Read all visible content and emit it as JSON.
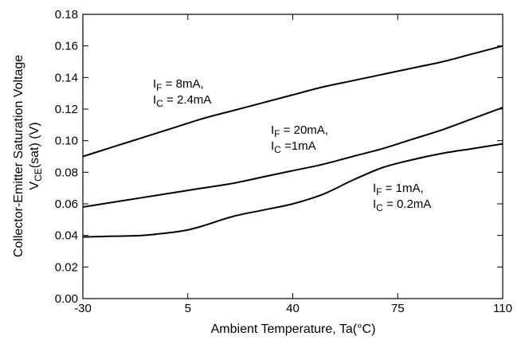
{
  "chart_data": {
    "type": "line",
    "title": "",
    "xlabel": "Ambient Temperature, Ta(°C)",
    "ylabel": {
      "line1": "Collector-Emitter Saturation Voltage",
      "line2_prefix": "V",
      "line2_sub": "CE",
      "line2_suffix": "(sat) (V)"
    },
    "x_ticks": [
      "-30",
      "5",
      "40",
      "75",
      "110"
    ],
    "y_ticks": [
      "0.00",
      "0.02",
      "0.04",
      "0.06",
      "0.08",
      "0.10",
      "0.12",
      "0.14",
      "0.16",
      "0.18"
    ],
    "xlim": [
      -30,
      110
    ],
    "ylim": [
      0,
      0.18
    ],
    "grid": false,
    "line_color": "#000000",
    "series": [
      {
        "label_lines": [
          {
            "prefix": "I",
            "sub": "F",
            "text": " = 8mA,"
          },
          {
            "prefix": "I",
            "sub": "C",
            "text": " = 2.4mA"
          }
        ],
        "x": [
          -30,
          -20,
          -10,
          0,
          10,
          20,
          30,
          40,
          50,
          60,
          70,
          80,
          90,
          100,
          110
        ],
        "y": [
          0.09,
          0.096,
          0.102,
          0.108,
          0.114,
          0.119,
          0.124,
          0.129,
          0.134,
          0.138,
          0.142,
          0.146,
          0.15,
          0.155,
          0.16
        ]
      },
      {
        "label_lines": [
          {
            "prefix": "I",
            "sub": "F",
            "text": " = 20mA,"
          },
          {
            "prefix": "I",
            "sub": "C",
            "text": " =1mA"
          }
        ],
        "x": [
          -30,
          -20,
          -10,
          0,
          10,
          20,
          30,
          40,
          50,
          60,
          70,
          80,
          90,
          100,
          110
        ],
        "y": [
          0.058,
          0.061,
          0.064,
          0.067,
          0.07,
          0.073,
          0.077,
          0.081,
          0.085,
          0.09,
          0.095,
          0.101,
          0.107,
          0.114,
          0.121
        ]
      },
      {
        "label_lines": [
          {
            "prefix": "I",
            "sub": "F",
            "text": " = 1mA,"
          },
          {
            "prefix": "I",
            "sub": "C",
            "text": " = 0.2mA"
          }
        ],
        "x": [
          -30,
          -20,
          -10,
          0,
          5,
          10,
          20,
          30,
          40,
          50,
          60,
          70,
          80,
          90,
          100,
          110
        ],
        "y": [
          0.039,
          0.0395,
          0.04,
          0.042,
          0.0435,
          0.046,
          0.052,
          0.056,
          0.06,
          0.066,
          0.075,
          0.083,
          0.088,
          0.092,
          0.095,
          0.098
        ]
      }
    ]
  }
}
